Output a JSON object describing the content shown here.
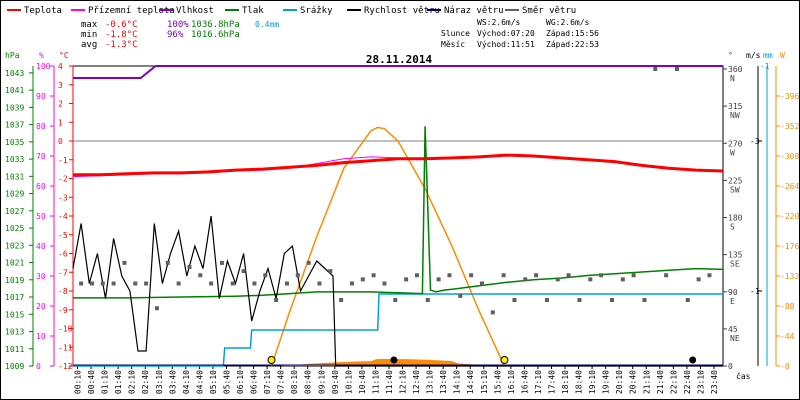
{
  "legend": [
    {
      "label": "Teplota",
      "color": "#ff0000"
    },
    {
      "label": "Přízemní teplota",
      "color": "#ff00ff"
    },
    {
      "label": "Vlhkost",
      "color": "#8000c0"
    },
    {
      "label": "Tlak",
      "color": "#008000"
    },
    {
      "label": "Srážky",
      "color": "#00a0e0"
    },
    {
      "label": "Rychlost větru",
      "color": "#000000"
    },
    {
      "label": "Náraz větru",
      "color": "#000080"
    },
    {
      "label": "Směr větru",
      "color": "#606060"
    }
  ],
  "stats": {
    "max": {
      "label": "max",
      "temp": "-0.6°C",
      "hum": "100%",
      "press": "1036.8hPa",
      "rain": "0.4mm"
    },
    "min": {
      "label": "min",
      "temp": "-1.8°C",
      "hum": "96%",
      "press": "1016.6hPa"
    },
    "avg": {
      "label": "avg",
      "temp": "-1.3°C"
    }
  },
  "wind_info": {
    "ws": "WS:2.6m/s",
    "wg": "WG:2.6m/s"
  },
  "sun_info": {
    "label": "Slunce",
    "rise": "Východ:07:20",
    "set": "Západ:15:56"
  },
  "moon_info": {
    "label": "Měsíc",
    "rise": "Východ:11:51",
    "set": "Západ:22:53"
  },
  "chart_data": {
    "type": "line",
    "title": "28.11.2014",
    "xlabel": "čas",
    "x_ticks": [
      "00:10",
      "00:40",
      "01:10",
      "01:40",
      "02:10",
      "02:40",
      "03:10",
      "03:40",
      "04:10",
      "04:40",
      "05:10",
      "05:40",
      "06:10",
      "06:40",
      "07:10",
      "07:40",
      "08:10",
      "08:40",
      "09:10",
      "09:40",
      "10:10",
      "10:40",
      "11:10",
      "11:40",
      "12:10",
      "12:40",
      "13:10",
      "13:40",
      "14:10",
      "14:40",
      "15:10",
      "15:40",
      "16:10",
      "16:40",
      "17:10",
      "17:40",
      "18:10",
      "18:40",
      "19:10",
      "19:40",
      "20:10",
      "20:40",
      "21:10",
      "21:40",
      "22:10",
      "22:40",
      "23:10",
      "23:40"
    ],
    "axes": {
      "hpa": {
        "label": "hPa",
        "ticks": [
          1043,
          1041,
          1039,
          1037,
          1035,
          1033,
          1031,
          1029,
          1027,
          1025,
          1023,
          1021,
          1019,
          1017,
          1015,
          1013,
          1011,
          1009
        ],
        "range": [
          1009,
          1043.8
        ]
      },
      "percent": {
        "label": "%",
        "ticks": [
          100,
          90,
          80,
          70,
          60,
          50,
          40,
          30,
          20,
          10,
          0
        ],
        "range": [
          0,
          100
        ]
      },
      "celsius": {
        "label": "°C",
        "ticks": [
          4,
          3,
          2,
          1,
          0,
          -1,
          -2,
          -3,
          -4,
          -5,
          -6,
          -7,
          -8,
          -9,
          -10,
          -11,
          -12
        ],
        "range": [
          -12,
          4
        ]
      },
      "direction": {
        "label": "°",
        "ticks": [
          {
            "v": "360",
            "d": "N"
          },
          {
            "v": "315",
            "d": "NW"
          },
          {
            "v": "270",
            "d": "W"
          },
          {
            "v": "225",
            "d": "SW"
          },
          {
            "v": "180",
            "d": "S"
          },
          {
            "v": "135",
            "d": "SE"
          },
          {
            "v": "90",
            "d": "E"
          },
          {
            "v": "45",
            "d": "NE"
          },
          {
            "v": "0",
            "d": ""
          }
        ]
      },
      "wind": {
        "label": "m/s",
        "ticks": [
          "1",
          "3"
        ],
        "range": [
          0,
          4
        ]
      },
      "rain": {
        "label": "mm",
        "ticks": [
          "1"
        ]
      },
      "solar": {
        "label": "W",
        "ticks": [
          396,
          352,
          308,
          264,
          220,
          176,
          132,
          88,
          44,
          0
        ],
        "range": [
          0,
          440
        ]
      }
    },
    "series": [
      {
        "name": "Teplota",
        "axis": "celsius",
        "x": [
          0,
          1,
          2,
          3,
          4,
          5,
          6,
          7,
          8,
          9,
          10,
          11,
          12,
          13,
          14,
          15,
          16,
          17,
          18,
          19,
          20,
          21,
          22,
          23,
          24
        ],
        "y": [
          -1.8,
          -1.8,
          -1.75,
          -1.7,
          -1.7,
          -1.65,
          -1.55,
          -1.5,
          -1.4,
          -1.3,
          -1.15,
          -1.05,
          -0.95,
          -0.95,
          -0.9,
          -0.85,
          -0.75,
          -0.8,
          -0.9,
          -1.0,
          -1.1,
          -1.3,
          -1.45,
          -1.55,
          -1.6
        ]
      },
      {
        "name": "Přízemní teplota",
        "axis": "celsius",
        "x": [
          0,
          1,
          2,
          3,
          4,
          5,
          6,
          7,
          8,
          9,
          10,
          11,
          12,
          13,
          14,
          15,
          16,
          17,
          18,
          19,
          20,
          21,
          22,
          23,
          24
        ],
        "y": [
          -1.9,
          -1.85,
          -1.8,
          -1.75,
          -1.75,
          -1.7,
          -1.6,
          -1.55,
          -1.45,
          -1.2,
          -0.95,
          -0.85,
          -0.9,
          -0.95,
          -0.9,
          -0.85,
          -0.75,
          -0.8,
          -0.9,
          -1.0,
          -1.1,
          -1.3,
          -1.45,
          -1.55,
          -1.6
        ]
      },
      {
        "name": "Vlhkost",
        "axis": "percent",
        "x": [
          0,
          2.5,
          3.05,
          24
        ],
        "y": [
          96,
          96,
          100,
          100
        ]
      },
      {
        "name": "Tlak",
        "axis": "hpa",
        "x": [
          0,
          2,
          4,
          6,
          7,
          8,
          9,
          10,
          11,
          12,
          12.9,
          13.0,
          13.2,
          13.4,
          13.7,
          14,
          15,
          16,
          17,
          18,
          19,
          20,
          21,
          22,
          23,
          24
        ],
        "y": [
          1016.9,
          1016.9,
          1017.0,
          1017.1,
          1017.2,
          1017.4,
          1017.6,
          1017.6,
          1017.6,
          1017.5,
          1017.4,
          1036.8,
          1017.8,
          1017.6,
          1017.8,
          1017.9,
          1018.3,
          1018.7,
          1019.0,
          1019.2,
          1019.5,
          1019.7,
          1019.9,
          1020.1,
          1020.3,
          1020.2
        ]
      },
      {
        "name": "Srážky",
        "axis": "rain",
        "x": [
          0,
          5.55,
          5.6,
          6.55,
          6.6,
          11.25,
          11.3,
          24
        ],
        "y": [
          0,
          0,
          0.1,
          0.1,
          0.2,
          0.2,
          0.4,
          0.4
        ]
      },
      {
        "name": "Solar",
        "axis": "solar",
        "x": [
          7.33,
          8,
          9,
          10,
          11,
          11.25,
          11.5,
          12,
          13,
          14,
          15,
          15.93
        ],
        "y": [
          0,
          80,
          190,
          290,
          345,
          350,
          348,
          330,
          260,
          175,
          80,
          0
        ]
      },
      {
        "name": "Rychlost větru",
        "axis": "wind",
        "x": [
          0,
          0.3,
          0.6,
          0.9,
          1.2,
          1.5,
          1.8,
          2.1,
          2.4,
          2.7,
          3.0,
          3.3,
          3.6,
          3.9,
          4.2,
          4.5,
          4.8,
          5.1,
          5.4,
          5.7,
          6.0,
          6.3,
          6.6,
          6.9,
          7.2,
          7.5,
          7.8,
          8.1,
          8.4,
          8.7,
          9.0,
          9.3,
          9.6,
          9.7,
          10.0,
          24
        ],
        "y": [
          1.3,
          1.9,
          1.1,
          1.5,
          0.9,
          1.7,
          1.2,
          1.0,
          0.2,
          0.2,
          1.9,
          1.1,
          1.5,
          1.8,
          1.2,
          1.6,
          1.3,
          2.0,
          0.9,
          1.4,
          1.1,
          1.5,
          0.6,
          1.0,
          1.3,
          0.9,
          1.5,
          1.6,
          1.0,
          1.2,
          1.4,
          1.3,
          1.2,
          0,
          0,
          0
        ]
      },
      {
        "name": "Náraz větru",
        "axis": "wind",
        "x": [
          0,
          24
        ],
        "y": [
          0,
          0
        ]
      }
    ],
    "wind_direction_x": [
      0.3,
      0.7,
      1.1,
      1.5,
      1.9,
      2.3,
      2.7,
      3.1,
      3.5,
      3.9,
      4.3,
      4.7,
      5.1,
      5.5,
      5.9,
      6.3,
      6.7,
      7.1,
      7.5,
      7.9,
      8.3,
      8.7,
      9.1,
      9.5,
      9.9,
      10.3,
      10.7,
      11.1,
      11.5,
      11.9,
      12.3,
      12.7,
      13.1,
      13.5,
      13.9,
      14.3,
      14.7,
      15.1,
      15.5,
      15.9,
      16.3,
      16.7,
      17.1,
      17.5,
      17.9,
      18.3,
      18.7,
      19.1,
      19.5,
      19.9,
      20.3,
      20.7,
      21.1,
      21.5,
      21.9,
      22.3,
      22.7,
      23.1,
      23.5
    ],
    "wind_direction_y": [
      100,
      100,
      100,
      100,
      125,
      100,
      100,
      70,
      125,
      100,
      120,
      110,
      100,
      125,
      100,
      115,
      100,
      110,
      80,
      100,
      110,
      125,
      100,
      115,
      80,
      100,
      105,
      110,
      100,
      80,
      105,
      110,
      80,
      105,
      110,
      85,
      110,
      100,
      65,
      110,
      80,
      105,
      110,
      80,
      105,
      110,
      80,
      105,
      110,
      80,
      105,
      110,
      80,
      360,
      110,
      360,
      80,
      105,
      110
    ]
  }
}
